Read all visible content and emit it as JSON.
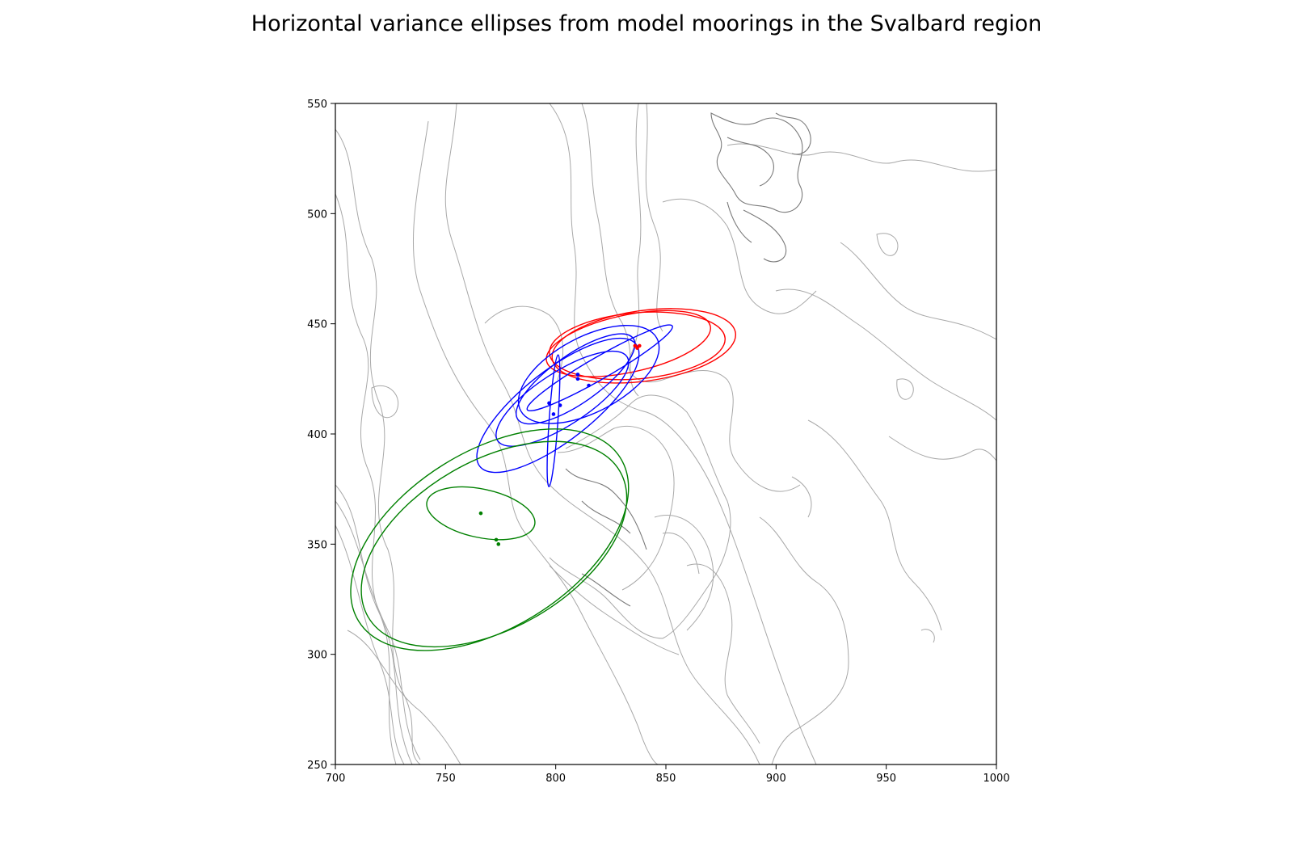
{
  "chart_data": {
    "type": "scatter",
    "title": "Horizontal variance ellipses from model moorings in the Svalbard region",
    "xlabel": "",
    "ylabel": "",
    "xlim": [
      700,
      1000
    ],
    "ylim": [
      250,
      550
    ],
    "xticks": [
      700,
      750,
      800,
      850,
      900,
      950,
      1000
    ],
    "yticks": [
      250,
      300,
      350,
      400,
      450,
      500,
      550
    ],
    "grid": false,
    "background": "bathymetry contour lines (grey)",
    "colors": {
      "red": "#ff0000",
      "blue": "#0000ff",
      "green": "#008000",
      "contour": "#a8a8a8"
    },
    "series": [
      {
        "color": "red",
        "moorings": [
          {
            "x": 836,
            "y": 440,
            "ellipse": {
              "cx": 837,
              "cy": 440,
              "major": 40,
              "minor": 15,
              "angle_deg": 5
            }
          },
          {
            "x": 837,
            "y": 439,
            "ellipse": {
              "cx": 840,
              "cy": 440,
              "major": 42,
              "minor": 16,
              "angle_deg": 8
            }
          },
          {
            "x": 838,
            "y": 440,
            "ellipse": {
              "cx": 833,
              "cy": 441,
              "major": 38,
              "minor": 13,
              "angle_deg": 12
            }
          }
        ]
      },
      {
        "color": "blue",
        "moorings": [
          {
            "x": 810,
            "y": 427,
            "ellipse": {
              "cx": 820,
              "cy": 430,
              "major": 38,
              "minor": 5,
              "angle_deg": 30
            }
          },
          {
            "x": 810,
            "y": 425,
            "ellipse": {
              "cx": 809,
              "cy": 425,
              "major": 32,
              "minor": 11,
              "angle_deg": 35
            }
          },
          {
            "x": 815,
            "y": 422,
            "ellipse": {
              "cx": 815,
              "cy": 427,
              "major": 35,
              "minor": 17,
              "angle_deg": 28
            }
          },
          {
            "x": 797,
            "y": 414,
            "ellipse": {
              "cx": 801,
              "cy": 413,
              "major": 45,
              "minor": 16,
              "angle_deg": 38
            }
          },
          {
            "x": 802,
            "y": 413,
            "ellipse": {
              "cx": 803,
              "cy": 416,
              "major": 35,
              "minor": 12,
              "angle_deg": 33
            }
          },
          {
            "x": 799,
            "y": 409,
            "ellipse": {
              "cx": 799,
              "cy": 406,
              "major": 30,
              "minor": 2,
              "angle_deg": 86
            }
          }
        ]
      },
      {
        "color": "green",
        "moorings": [
          {
            "x": 766,
            "y": 364,
            "ellipse": {
              "cx": 766,
              "cy": 364,
              "major": 25,
              "minor": 11,
              "angle_deg": -12
            }
          },
          {
            "x": 773,
            "y": 352,
            "ellipse": {
              "cx": 770,
              "cy": 352,
              "major": 70,
              "minor": 40,
              "angle_deg": 32
            }
          },
          {
            "x": 774,
            "y": 350,
            "ellipse": {
              "cx": 772,
              "cy": 350,
              "major": 66,
              "minor": 38,
              "angle_deg": 30
            }
          }
        ]
      }
    ]
  }
}
